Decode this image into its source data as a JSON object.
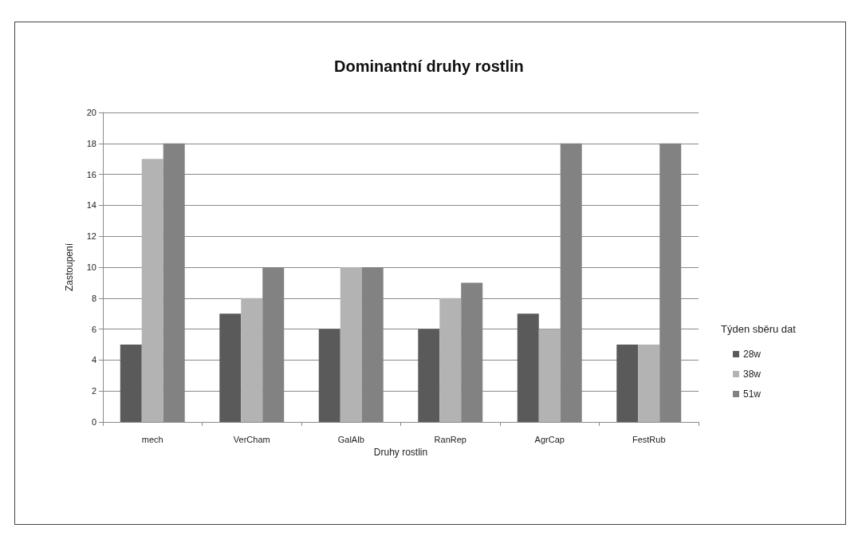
{
  "chart_data": {
    "type": "bar",
    "title": "Dominantní druhy rostlin",
    "xlabel": "Druhy rostlin",
    "ylabel": "Zastoupení",
    "legend_title": "Týden sběru dat",
    "categories": [
      "mech",
      "VerCham",
      "GalAlb",
      "RanRep",
      "AgrCap",
      "FestRub"
    ],
    "series": [
      {
        "name": "28w",
        "color": "#5a5a5a",
        "values": [
          5,
          7,
          6,
          6,
          7,
          5
        ]
      },
      {
        "name": "38w",
        "color": "#b3b3b3",
        "values": [
          17,
          8,
          10,
          8,
          6,
          5
        ]
      },
      {
        "name": "51w",
        "color": "#828282",
        "values": [
          18,
          10,
          10,
          9,
          18,
          18
        ]
      }
    ],
    "ylim": [
      0,
      20
    ],
    "yticks": [
      0,
      2,
      4,
      6,
      8,
      10,
      12,
      14,
      16,
      18,
      20
    ],
    "grid": "y",
    "legend": "right"
  }
}
